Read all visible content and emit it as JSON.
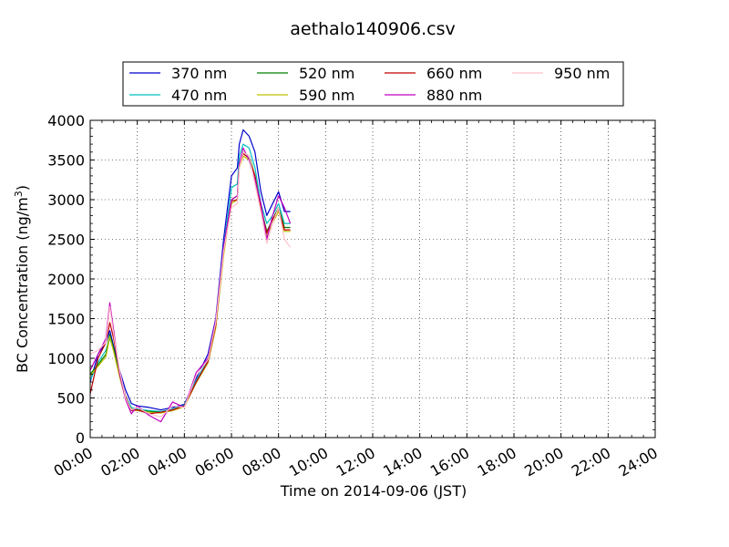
{
  "chart_data": {
    "type": "line",
    "title": "aethalo140906.csv",
    "xlabel": "Time on 2014-09-06 (JST)",
    "ylabel": "BC Concentration (ng/m³)",
    "ylabel_parts": {
      "main": "BC Concentration (ng/m",
      "sup": "3",
      "close": ")"
    },
    "xlim": [
      "00:00",
      "24:00"
    ],
    "ylim": [
      0,
      4000
    ],
    "xticks": [
      "00:00",
      "02:00",
      "04:00",
      "06:00",
      "08:00",
      "10:00",
      "12:00",
      "14:00",
      "16:00",
      "18:00",
      "20:00",
      "22:00",
      "24:00"
    ],
    "yticks": [
      "0",
      "500",
      "1000",
      "1500",
      "2000",
      "2500",
      "3000",
      "3500",
      "4000"
    ],
    "grid": true,
    "legend_position": "top",
    "series": [
      {
        "name": "370 nm",
        "color": "#0000cc",
        "x": [
          "00:00",
          "00:20",
          "00:40",
          "00:50",
          "01:00",
          "01:15",
          "01:30",
          "01:45",
          "02:00",
          "02:30",
          "03:00",
          "03:30",
          "04:00",
          "04:30",
          "05:00",
          "05:20",
          "05:40",
          "06:00",
          "06:15",
          "06:20",
          "06:30",
          "06:45",
          "07:00",
          "07:15",
          "07:30",
          "07:45",
          "08:00",
          "08:15",
          "08:30"
        ],
        "values": [
          700,
          1050,
          1200,
          1350,
          1150,
          850,
          600,
          430,
          400,
          380,
          350,
          380,
          420,
          750,
          1050,
          1500,
          2500,
          3300,
          3400,
          3700,
          3880,
          3800,
          3600,
          3100,
          2800,
          2950,
          3100,
          2850,
          2850
        ]
      },
      {
        "name": "470 nm",
        "color": "#00bfbf",
        "x": [
          "00:00",
          "00:20",
          "00:40",
          "00:50",
          "01:00",
          "01:15",
          "01:30",
          "01:45",
          "02:00",
          "02:30",
          "03:00",
          "03:30",
          "04:00",
          "04:30",
          "05:00",
          "05:20",
          "05:40",
          "06:00",
          "06:15",
          "06:20",
          "06:30",
          "06:45",
          "07:00",
          "07:15",
          "07:30",
          "07:45",
          "08:00",
          "08:15",
          "08:30"
        ],
        "values": [
          720,
          950,
          1100,
          1250,
          1100,
          800,
          520,
          380,
          360,
          340,
          330,
          360,
          410,
          720,
          980,
          1450,
          2400,
          3150,
          3200,
          3550,
          3700,
          3650,
          3400,
          2950,
          2700,
          2800,
          2950,
          2700,
          2700
        ]
      },
      {
        "name": "520 nm",
        "color": "#007f00",
        "x": [
          "00:00",
          "00:20",
          "00:40",
          "00:50",
          "01:00",
          "01:15",
          "01:30",
          "01:45",
          "02:00",
          "02:30",
          "03:00",
          "03:30",
          "04:00",
          "04:30",
          "05:00",
          "05:20",
          "05:40",
          "06:00",
          "06:15",
          "06:20",
          "06:30",
          "06:45",
          "07:00",
          "07:15",
          "07:30",
          "07:45",
          "08:00",
          "08:15",
          "08:30"
        ],
        "values": [
          800,
          920,
          1050,
          1300,
          1120,
          780,
          500,
          360,
          350,
          330,
          320,
          350,
          400,
          700,
          950,
          1400,
          2350,
          3000,
          3050,
          3450,
          3600,
          3550,
          3300,
          2900,
          2600,
          2750,
          2900,
          2650,
          2650
        ]
      },
      {
        "name": "590 nm",
        "color": "#bfbf00",
        "x": [
          "00:00",
          "00:20",
          "00:40",
          "00:50",
          "01:00",
          "01:15",
          "01:30",
          "01:45",
          "02:00",
          "02:30",
          "03:00",
          "03:30",
          "04:00",
          "04:30",
          "05:00",
          "05:20",
          "05:40",
          "06:00",
          "06:15",
          "06:20",
          "06:30",
          "06:45",
          "07:00",
          "07:15",
          "07:30",
          "07:45",
          "08:00",
          "08:15",
          "08:30"
        ],
        "values": [
          780,
          900,
          1020,
          1270,
          1080,
          760,
          490,
          350,
          340,
          320,
          310,
          340,
          390,
          690,
          940,
          1380,
          2300,
          2950,
          3000,
          3400,
          3550,
          3500,
          3250,
          2850,
          2550,
          2700,
          2850,
          2600,
          2600
        ]
      },
      {
        "name": "660 nm",
        "color": "#bf0000",
        "x": [
          "00:00",
          "00:20",
          "00:40",
          "00:50",
          "01:00",
          "01:15",
          "01:30",
          "01:45",
          "02:00",
          "02:30",
          "03:00",
          "03:30",
          "04:00",
          "04:30",
          "05:00",
          "05:20",
          "05:40",
          "06:00",
          "06:15",
          "06:20",
          "06:30",
          "06:45",
          "07:00",
          "07:15",
          "07:30",
          "07:45",
          "08:00",
          "08:15",
          "08:30"
        ],
        "values": [
          550,
          1000,
          1200,
          1450,
          1250,
          820,
          520,
          340,
          350,
          300,
          320,
          350,
          400,
          700,
          960,
          1420,
          2350,
          2980,
          3000,
          3420,
          3580,
          3520,
          3300,
          2880,
          2580,
          2750,
          2880,
          2620,
          2620
        ]
      },
      {
        "name": "880 nm",
        "color": "#bf00bf",
        "x": [
          "00:00",
          "00:20",
          "00:40",
          "00:50",
          "01:00",
          "01:15",
          "01:30",
          "01:45",
          "02:00",
          "02:30",
          "03:00",
          "03:30",
          "04:00",
          "04:30",
          "05:00",
          "05:20",
          "05:40",
          "06:00",
          "06:15",
          "06:20",
          "06:30",
          "06:45",
          "07:00",
          "07:15",
          "07:30",
          "07:45",
          "08:00",
          "08:15",
          "08:30"
        ],
        "values": [
          850,
          1050,
          1250,
          1700,
          1350,
          800,
          480,
          300,
          400,
          280,
          200,
          450,
          380,
          820,
          1000,
          1480,
          2400,
          3000,
          3050,
          3450,
          3650,
          3500,
          3250,
          2950,
          2500,
          2800,
          3050,
          2900,
          2700
        ]
      },
      {
        "name": "950 nm",
        "color": "#ffc0cb",
        "x": [
          "00:00",
          "00:20",
          "00:40",
          "00:50",
          "01:00",
          "01:15",
          "01:30",
          "01:45",
          "02:00",
          "02:30",
          "03:00",
          "03:30",
          "04:00",
          "04:30",
          "05:00",
          "05:20",
          "05:40",
          "06:00",
          "06:15",
          "06:20",
          "06:30",
          "06:45",
          "07:00",
          "07:15",
          "07:30",
          "07:45",
          "08:00",
          "08:15",
          "08:30"
        ],
        "values": [
          1050,
          1100,
          1200,
          1650,
          1300,
          850,
          500,
          350,
          380,
          300,
          260,
          400,
          380,
          780,
          980,
          1450,
          2350,
          2900,
          2950,
          3400,
          3600,
          3550,
          3200,
          2850,
          2450,
          2700,
          2900,
          2500,
          2400
        ]
      }
    ]
  }
}
